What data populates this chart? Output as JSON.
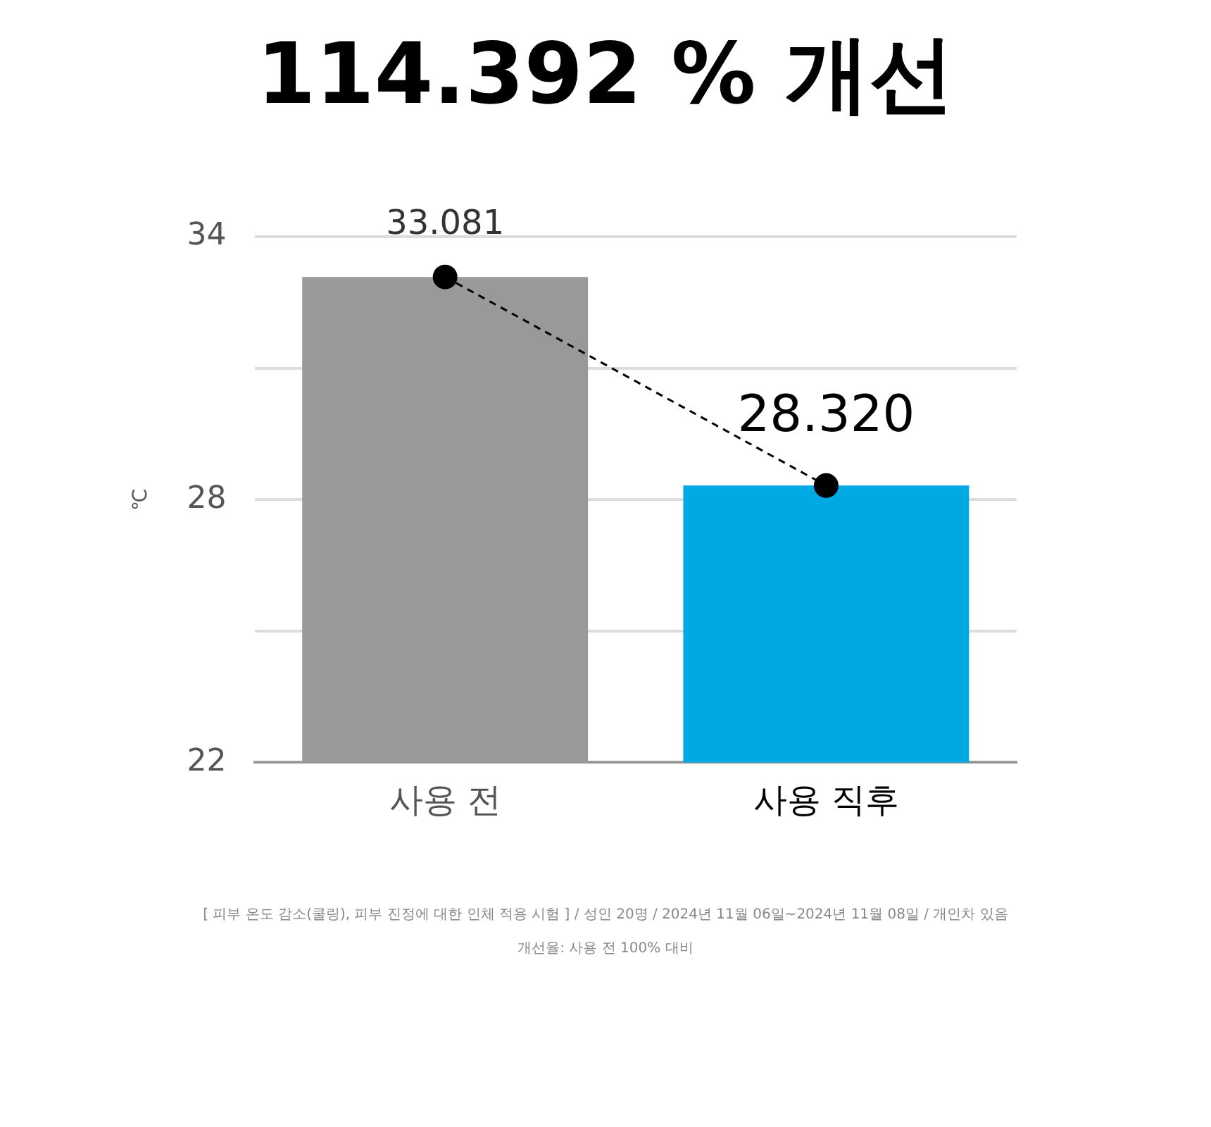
{
  "chart_data": {
    "type": "bar",
    "title": "114.392 % 개선",
    "ylabel": "℃",
    "categories": [
      "사용 전",
      "사용 직후"
    ],
    "series": [
      {
        "colors": [
          "#999999",
          "#00a9e4"
        ],
        "values": [
          33.081,
          28.32
        ]
      },
      {
        "type": "line",
        "color": "#000000",
        "line_style": "dashed",
        "marker": "circle",
        "values": [
          33.081,
          28.32
        ],
        "value_labels": [
          "33.081",
          "28.320"
        ]
      }
    ],
    "ylim": [
      22,
      34
    ],
    "yticks": [
      22,
      {
        "value": 25,
        "label": null
      },
      28,
      {
        "value": 31,
        "label": null
      },
      34
    ],
    "grid": "y",
    "legend": false,
    "annotations": [
      "[ 피부 온도 감소(쿨링), 피부 진정에 대한 인체 적용 시험 ] / 성인 20명 / 2024년 11월 06일~2024년 11월 08일 / 개인차 있음",
      "개선율: 사용 전 100% 대비"
    ]
  }
}
